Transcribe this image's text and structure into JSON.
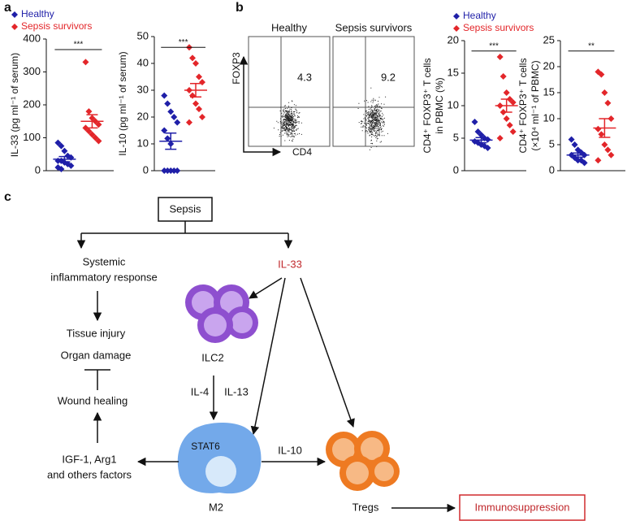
{
  "panel_labels": [
    "a",
    "b",
    "c"
  ],
  "chart_data": [
    {
      "type": "strip",
      "ylabel": [
        "IL-33 (pg ml⁻¹ of serum)"
      ],
      "ylim": [
        0,
        400
      ],
      "yticks": [
        0,
        100,
        200,
        300,
        400
      ],
      "significance": "***",
      "legend": true,
      "series": [
        {
          "name": "Healthy",
          "color": "#1f1fa8",
          "values": [
            85,
            75,
            60,
            45,
            40,
            30,
            30,
            25,
            20,
            15,
            10,
            5
          ],
          "mean": 35,
          "sem": 8
        },
        {
          "name": "Sepsis survivors",
          "color": "#e3262a",
          "values": [
            330,
            180,
            160,
            150,
            140,
            130,
            120,
            110,
            100,
            90
          ],
          "mean": 150,
          "sem": 20
        }
      ]
    },
    {
      "type": "strip",
      "ylabel": [
        "IL-10 (pg ml⁻¹ of serum)"
      ],
      "ylim": [
        0,
        50
      ],
      "yticks": [
        0,
        10,
        20,
        30,
        40,
        50
      ],
      "significance": "***",
      "legend": false,
      "series": [
        {
          "color": "#1f1fa8",
          "values": [
            28,
            25,
            22,
            20,
            18,
            15,
            12,
            10,
            0,
            0,
            0,
            0,
            0
          ],
          "mean": 11,
          "sem": 3
        },
        {
          "color": "#e3262a",
          "values": [
            46,
            42,
            40,
            35,
            33,
            30,
            28,
            25,
            23,
            20,
            18
          ],
          "mean": 30,
          "sem": 2.5
        }
      ]
    },
    {
      "type": "strip",
      "ylabel": [
        "CD4⁺ FOXP3⁺ T cells",
        "in PBMC (%)"
      ],
      "ylim": [
        0,
        20
      ],
      "yticks": [
        0,
        5,
        10,
        15,
        20
      ],
      "significance": "***",
      "legend": true,
      "series": [
        {
          "name": "Healthy",
          "color": "#1f1fa8",
          "values": [
            7.5,
            6,
            5.5,
            5,
            4.8,
            4.5,
            4.3,
            4,
            3.8,
            3.5
          ],
          "mean": 4.7,
          "sem": 0.4
        },
        {
          "name": "Sepsis survivors",
          "color": "#e3262a",
          "values": [
            17.5,
            14.5,
            12,
            11,
            10.5,
            10,
            9,
            8,
            7,
            6,
            5
          ],
          "mean": 10,
          "sem": 1
        }
      ]
    },
    {
      "type": "strip",
      "ylabel": [
        "CD4⁺ FOXP3⁺ T cells",
        "(×10⁴ ml⁻¹ of PBMC)"
      ],
      "ylim": [
        0,
        25
      ],
      "yticks": [
        0,
        5,
        10,
        15,
        20,
        25
      ],
      "significance": "**",
      "legend": false,
      "series": [
        {
          "color": "#1f1fa8",
          "values": [
            6,
            5,
            4,
            3.5,
            3,
            3,
            2.5,
            2,
            2,
            1.5
          ],
          "mean": 3,
          "sem": 0.4
        },
        {
          "color": "#e3262a",
          "values": [
            19,
            18.5,
            15,
            13,
            10,
            8,
            7,
            5,
            4,
            3,
            2
          ],
          "mean": 8.2,
          "sem": 1.8
        }
      ]
    }
  ],
  "flow": {
    "y_axis": "FOXP3",
    "x_axis": "CD4",
    "plots": [
      {
        "title": "Healthy",
        "percent": "4.3"
      },
      {
        "title": "Sepsis survivors",
        "percent": "9.2"
      }
    ]
  },
  "diagram": {
    "sepsis": "Sepsis",
    "systemic": [
      "Systemic",
      "inflammatory response"
    ],
    "il33": "IL-33",
    "injury": [
      "Tissue injury",
      "Organ damage"
    ],
    "ilc2": "ILC2",
    "wound": "Wound healing",
    "il4": "IL-4",
    "il13": "IL-13",
    "factors": [
      "IGF-1, Arg1",
      "and others factors"
    ],
    "stat6": "STAT6",
    "il10": "IL-10",
    "m2": "M2",
    "tregs": "Tregs",
    "immuno": "Immunosuppression"
  }
}
